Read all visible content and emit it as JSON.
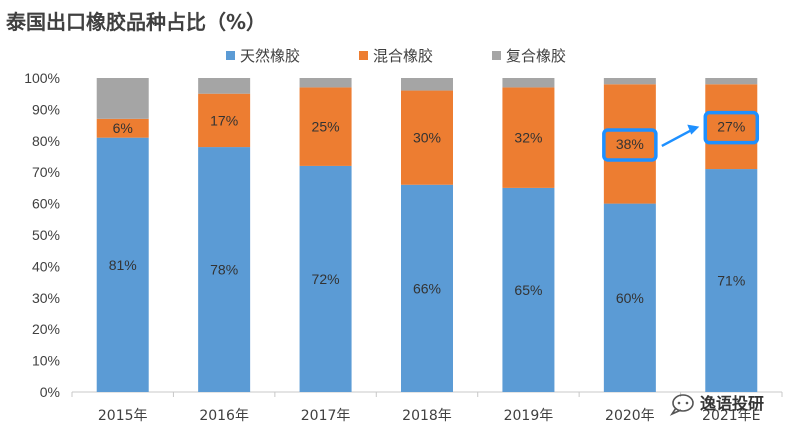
{
  "chart_data": {
    "type": "bar",
    "stacked": true,
    "title": "泰国出口橡胶品种占比（%）",
    "categories": [
      "2015年",
      "2016年",
      "2017年",
      "2018年",
      "2019年",
      "2020年",
      "2021年E"
    ],
    "series": [
      {
        "name": "天然橡胶",
        "color": "#5B9BD5",
        "values": [
          81,
          78,
          72,
          66,
          65,
          60,
          71
        ],
        "labels": [
          "81%",
          "78%",
          "72%",
          "66%",
          "65%",
          "60%",
          "71%"
        ]
      },
      {
        "name": "混合橡胶",
        "color": "#ED7D31",
        "values": [
          6,
          17,
          25,
          30,
          32,
          38,
          27
        ],
        "labels": [
          "6%",
          "17%",
          "25%",
          "30%",
          "32%",
          "38%",
          "27%"
        ]
      },
      {
        "name": "复合橡胶",
        "color": "#A5A5A5",
        "values": [
          13,
          5,
          3,
          4,
          3,
          2,
          2
        ]
      }
    ],
    "y_ticks": [
      "0%",
      "10%",
      "20%",
      "30%",
      "40%",
      "50%",
      "60%",
      "70%",
      "80%",
      "90%",
      "100%"
    ],
    "ylim": [
      0,
      100
    ],
    "grid": false,
    "legend_position": "top",
    "highlight": {
      "categories": [
        "2020年",
        "2021年E"
      ],
      "series": "混合橡胶",
      "color": "#1E90FF",
      "arrow": true
    }
  },
  "watermark": {
    "text": "逸语投研",
    "icon": "chat-bubble-icon"
  }
}
